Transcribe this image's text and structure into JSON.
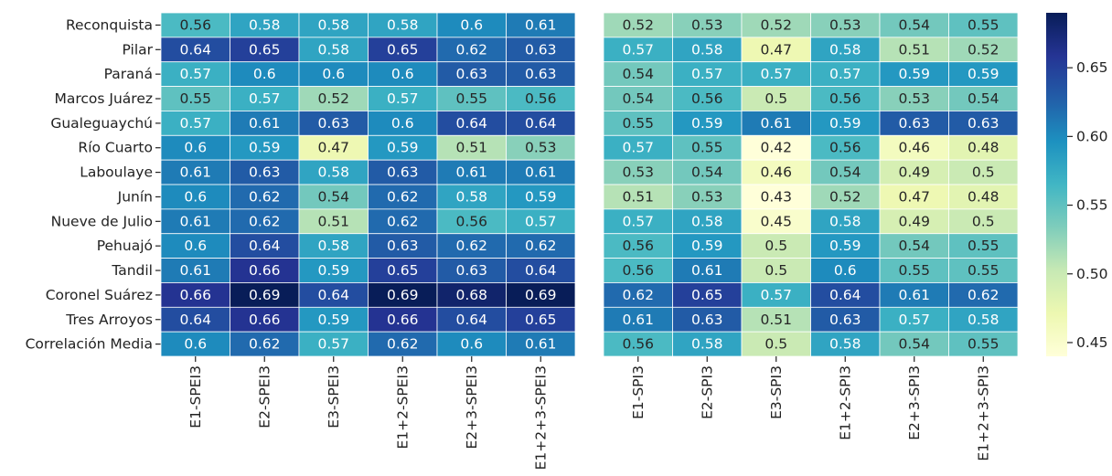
{
  "chart_data": {
    "type": "heatmap",
    "rows": [
      "Reconquista",
      "Pilar",
      "Paraná",
      "Marcos Juárez",
      "Gualeguaychú",
      "Río Cuarto",
      "Laboulaye",
      "Junín",
      "Nueve de Julio",
      "Pehuajó",
      "Tandil",
      "Coronel Suárez",
      "Tres Arroyos",
      "Correlación Media"
    ],
    "panels": [
      {
        "columns": [
          "E1-SPEI3",
          "E2-SPEI3",
          "E3-SPEI3",
          "E1+2-SPEI3",
          "E2+3-SPEI3",
          "E1+2+3-SPEI3"
        ],
        "values": [
          [
            0.56,
            0.58,
            0.58,
            0.58,
            0.6,
            0.61
          ],
          [
            0.64,
            0.65,
            0.58,
            0.65,
            0.62,
            0.63
          ],
          [
            0.57,
            0.6,
            0.6,
            0.6,
            0.63,
            0.63
          ],
          [
            0.55,
            0.57,
            0.52,
            0.57,
            0.55,
            0.56
          ],
          [
            0.57,
            0.61,
            0.63,
            0.6,
            0.64,
            0.64
          ],
          [
            0.6,
            0.59,
            0.47,
            0.59,
            0.51,
            0.53
          ],
          [
            0.61,
            0.63,
            0.58,
            0.63,
            0.61,
            0.61
          ],
          [
            0.6,
            0.62,
            0.54,
            0.62,
            0.58,
            0.59
          ],
          [
            0.61,
            0.62,
            0.51,
            0.62,
            0.56,
            0.57
          ],
          [
            0.6,
            0.64,
            0.58,
            0.63,
            0.62,
            0.62
          ],
          [
            0.61,
            0.66,
            0.59,
            0.65,
            0.63,
            0.64
          ],
          [
            0.66,
            0.69,
            0.64,
            0.69,
            0.68,
            0.69
          ],
          [
            0.64,
            0.66,
            0.59,
            0.66,
            0.64,
            0.65
          ],
          [
            0.6,
            0.62,
            0.57,
            0.62,
            0.6,
            0.61
          ]
        ]
      },
      {
        "columns": [
          "E1-SPI3",
          "E2-SPI3",
          "E3-SPI3",
          "E1+2-SPI3",
          "E2+3-SPI3",
          "E1+2+3-SPI3"
        ],
        "values": [
          [
            0.52,
            0.53,
            0.52,
            0.53,
            0.54,
            0.55
          ],
          [
            0.57,
            0.58,
            0.47,
            0.58,
            0.51,
            0.52
          ],
          [
            0.54,
            0.57,
            0.57,
            0.57,
            0.59,
            0.59
          ],
          [
            0.54,
            0.56,
            0.5,
            0.56,
            0.53,
            0.54
          ],
          [
            0.55,
            0.59,
            0.61,
            0.59,
            0.63,
            0.63
          ],
          [
            0.57,
            0.55,
            0.42,
            0.56,
            0.46,
            0.48
          ],
          [
            0.53,
            0.54,
            0.46,
            0.54,
            0.49,
            0.5
          ],
          [
            0.51,
            0.53,
            0.43,
            0.52,
            0.47,
            0.48
          ],
          [
            0.57,
            0.58,
            0.45,
            0.58,
            0.49,
            0.5
          ],
          [
            0.56,
            0.59,
            0.5,
            0.59,
            0.54,
            0.55
          ],
          [
            0.56,
            0.61,
            0.5,
            0.6,
            0.55,
            0.55
          ],
          [
            0.62,
            0.65,
            0.57,
            0.64,
            0.61,
            0.62
          ],
          [
            0.61,
            0.63,
            0.51,
            0.63,
            0.57,
            0.58
          ],
          [
            0.56,
            0.58,
            0.5,
            0.58,
            0.54,
            0.55
          ]
        ]
      }
    ],
    "colorbar": {
      "colormap": "YlGnBu",
      "range": [
        0.44,
        0.69
      ],
      "ticks": [
        0.45,
        0.5,
        0.55,
        0.6,
        0.65
      ],
      "tick_labels": [
        "0.45",
        "0.50",
        "0.55",
        "0.60",
        "0.65"
      ]
    },
    "title": "",
    "xlabel": "",
    "ylabel": ""
  }
}
